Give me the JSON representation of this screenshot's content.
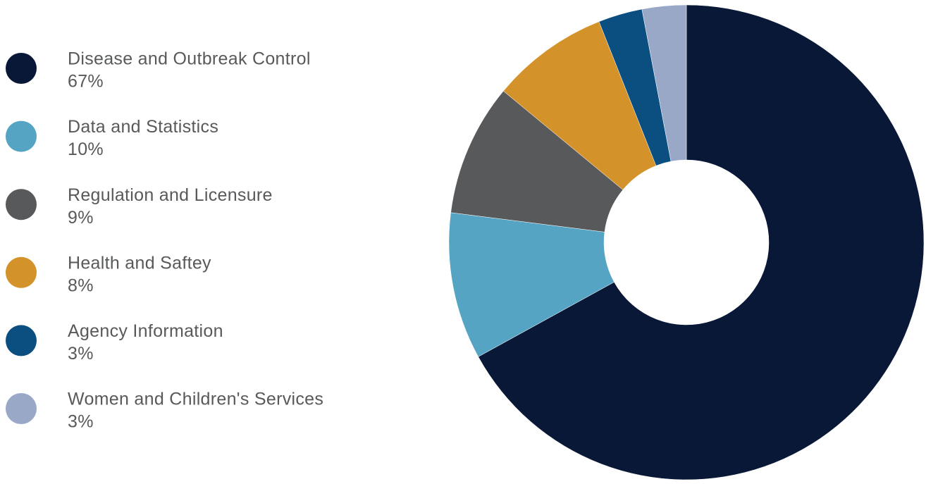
{
  "chart_data": {
    "type": "donut",
    "categories": [
      "Disease and Outbreak Control",
      "Data and Statistics",
      "Regulation and Licensure",
      "Health and Saftey",
      "Agency Information",
      "Women and Children's Services"
    ],
    "values": [
      67,
      10,
      9,
      8,
      3,
      3
    ],
    "value_labels": [
      "67%",
      "10%",
      "9%",
      "8%",
      "3%",
      "3%"
    ],
    "colors": [
      "#0a1838",
      "#55a4c4",
      "#58595b",
      "#d4922a",
      "#0b4f80",
      "#9aa8c8"
    ],
    "legend": "left"
  }
}
